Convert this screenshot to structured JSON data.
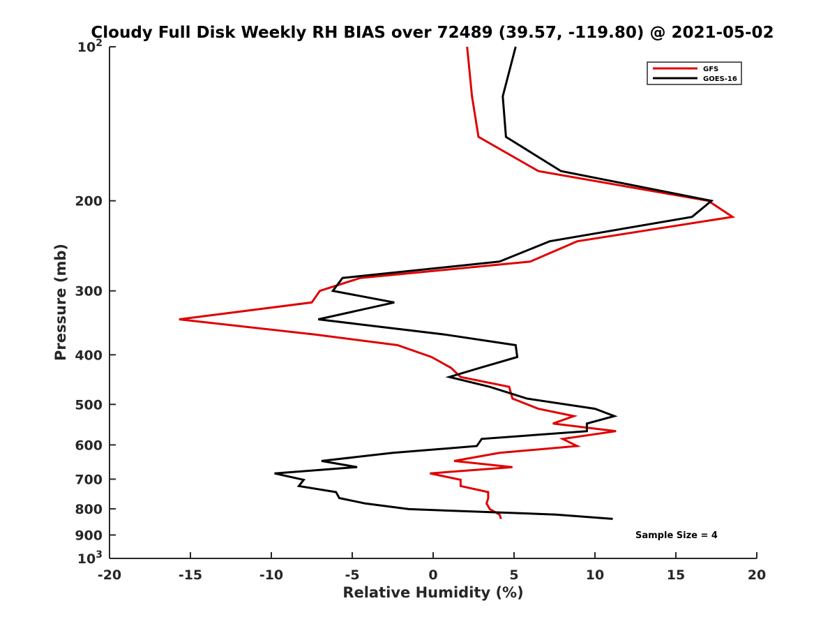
{
  "chart_data": {
    "type": "line",
    "title": "Cloudy Full Disk Weekly RH BIAS over 72489 (39.57, -119.80) @ 2021-05-02",
    "xlabel": "Relative Humidity (%)",
    "ylabel": "Pressure (mb)",
    "xlim": [
      -20,
      20
    ],
    "ylim": [
      100,
      1000
    ],
    "y_scale": "log",
    "y_reversed": true,
    "grid": false,
    "legend_position": "top-right",
    "x_ticks": [
      -20,
      -15,
      -10,
      -5,
      0,
      5,
      10,
      15,
      20
    ],
    "x_tick_labels": [
      "-20",
      "-15",
      "-10",
      "-5",
      "0",
      "5",
      "10",
      "15",
      "20"
    ],
    "y_ticks": [
      100,
      200,
      300,
      400,
      500,
      600,
      700,
      800,
      900,
      1000
    ],
    "y_tick_labels": [
      {
        "base": "10",
        "exp": "2"
      },
      {
        "base": "200",
        "exp": ""
      },
      {
        "base": "300",
        "exp": ""
      },
      {
        "base": "400",
        "exp": ""
      },
      {
        "base": "500",
        "exp": ""
      },
      {
        "base": "600",
        "exp": ""
      },
      {
        "base": "700",
        "exp": ""
      },
      {
        "base": "800",
        "exp": ""
      },
      {
        "base": "900",
        "exp": ""
      },
      {
        "base": "10",
        "exp": "3"
      }
    ],
    "annotation": "Sample Size = 4",
    "series": [
      {
        "name": "GFS",
        "color": "#e00000",
        "points": [
          [
            2.1,
            100
          ],
          [
            2.4,
            125
          ],
          [
            2.8,
            150
          ],
          [
            6.5,
            175
          ],
          [
            17.0,
            200
          ],
          [
            18.5,
            215
          ],
          [
            8.9,
            240
          ],
          [
            6.0,
            263
          ],
          [
            -4.5,
            283
          ],
          [
            -7.0,
            300
          ],
          [
            -7.5,
            316
          ],
          [
            -15.7,
            341
          ],
          [
            -7.3,
            365
          ],
          [
            -2.2,
            383
          ],
          [
            -0.1,
            404
          ],
          [
            1.1,
            424
          ],
          [
            1.7,
            442
          ],
          [
            4.7,
            462
          ],
          [
            4.9,
            487
          ],
          [
            6.5,
            510
          ],
          [
            8.7,
            527
          ],
          [
            7.4,
            545
          ],
          [
            11.3,
            564
          ],
          [
            8.0,
            584
          ],
          [
            8.9,
            603
          ],
          [
            4.1,
            622
          ],
          [
            1.3,
            645
          ],
          [
            4.9,
            663
          ],
          [
            -0.2,
            682
          ],
          [
            1.7,
            702
          ],
          [
            1.7,
            722
          ],
          [
            3.4,
            742
          ],
          [
            3.4,
            762
          ],
          [
            3.3,
            781
          ],
          [
            3.5,
            801
          ],
          [
            4.1,
            821
          ],
          [
            4.2,
            837
          ]
        ]
      },
      {
        "name": "GOES-16",
        "color": "#000000",
        "points": [
          [
            5.1,
            100
          ],
          [
            4.3,
            125
          ],
          [
            4.5,
            150
          ],
          [
            7.9,
            175
          ],
          [
            17.2,
            200
          ],
          [
            16.0,
            215
          ],
          [
            7.2,
            240
          ],
          [
            4.1,
            263
          ],
          [
            -5.6,
            283
          ],
          [
            -6.2,
            300
          ],
          [
            -2.4,
            316
          ],
          [
            -7.1,
            341
          ],
          [
            0.7,
            365
          ],
          [
            5.1,
            383
          ],
          [
            5.2,
            404
          ],
          [
            2.9,
            424
          ],
          [
            1.0,
            442
          ],
          [
            3.5,
            462
          ],
          [
            5.8,
            487
          ],
          [
            10.0,
            510
          ],
          [
            11.2,
            527
          ],
          [
            9.5,
            545
          ],
          [
            9.5,
            564
          ],
          [
            3.0,
            584
          ],
          [
            2.7,
            603
          ],
          [
            -2.5,
            622
          ],
          [
            -6.9,
            645
          ],
          [
            -4.7,
            663
          ],
          [
            -9.8,
            682
          ],
          [
            -8.0,
            702
          ],
          [
            -8.3,
            722
          ],
          [
            -6.0,
            742
          ],
          [
            -5.8,
            762
          ],
          [
            -4.2,
            781
          ],
          [
            -1.5,
            801
          ],
          [
            7.6,
            821
          ],
          [
            11.1,
            837
          ]
        ]
      }
    ]
  }
}
